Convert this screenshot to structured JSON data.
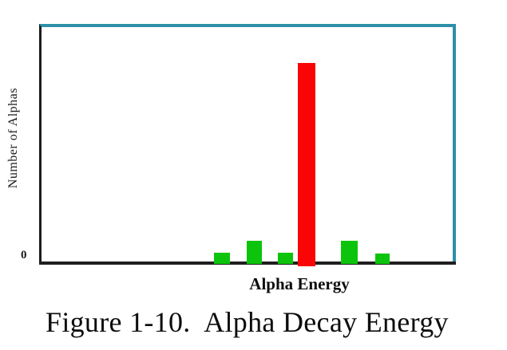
{
  "figure": {
    "caption": "Figure 1-10.  Alpha Decay Energy",
    "xlabel": "Alpha Energy",
    "ylabel": "Number of Alphas",
    "y_origin_tick": "0"
  },
  "colors": {
    "red_bar": "#fa0505",
    "green_bar": "#0cc40c",
    "frame_teal": "#2e8fa9",
    "axis_black": "#1f1f1f",
    "background": "#ffffff"
  },
  "chart_data": {
    "type": "bar",
    "title": "Figure 1-10.  Alpha Decay Energy",
    "xlabel": "Alpha Energy",
    "ylabel": "Number of Alphas",
    "x_tick_labels": [],
    "y_tick_labels": [
      "0"
    ],
    "grid": false,
    "legend": null,
    "value_note": "No numeric scale shown on either axis; bar values are relative with the tallest (red) peak = 100.",
    "bars": [
      {
        "name": "green-peak-1",
        "color": "green",
        "value": 5.6,
        "x_frac": 0.439,
        "width_frac": 0.039
      },
      {
        "name": "green-peak-2",
        "color": "green",
        "value": 11.2,
        "x_frac": 0.518,
        "width_frac": 0.037
      },
      {
        "name": "green-peak-3",
        "color": "green",
        "value": 5.6,
        "x_frac": 0.593,
        "width_frac": 0.037
      },
      {
        "name": "red-main-peak",
        "color": "red",
        "value": 100,
        "x_frac": 0.645,
        "width_frac": 0.043
      },
      {
        "name": "green-peak-4",
        "color": "green",
        "value": 11.2,
        "x_frac": 0.748,
        "width_frac": 0.041
      },
      {
        "name": "green-peak-5",
        "color": "green",
        "value": 5.2,
        "x_frac": 0.829,
        "width_frac": 0.035
      }
    ]
  }
}
